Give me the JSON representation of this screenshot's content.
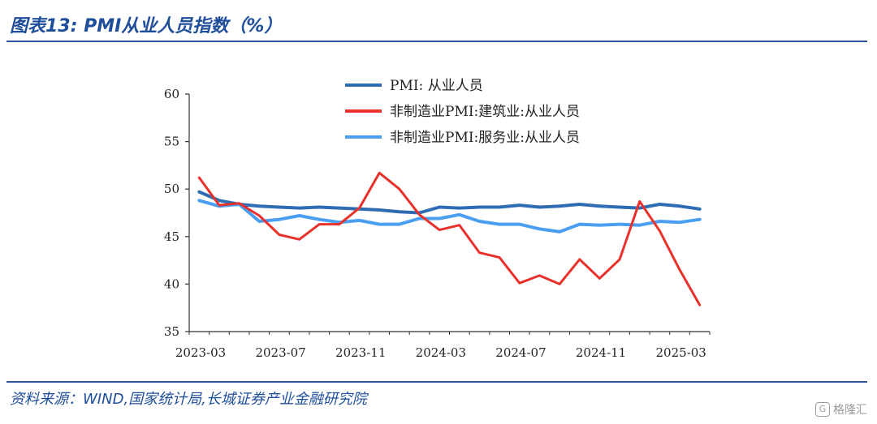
{
  "header": {
    "title": "图表13:  PMI从业人员指数（%）"
  },
  "footer": {
    "source": "资料来源：WIND,国家统计局,长城证券产业金融研究院"
  },
  "watermark": {
    "logo": "G",
    "text": "格隆汇"
  },
  "colors": {
    "title": "#1f4e9a",
    "rule": "#2f5597"
  },
  "chart_data": {
    "type": "line",
    "x": [
      "2023-03",
      "2023-04",
      "2023-05",
      "2023-06",
      "2023-07",
      "2023-08",
      "2023-09",
      "2023-10",
      "2023-11",
      "2023-12",
      "2024-01",
      "2024-02",
      "2024-03",
      "2024-04",
      "2024-05",
      "2024-06",
      "2024-07",
      "2024-08",
      "2024-09",
      "2024-10",
      "2024-11",
      "2024-12",
      "2025-01",
      "2025-02",
      "2025-03",
      "2025-04"
    ],
    "xticks": [
      "2023-03",
      "2023-07",
      "2023-11",
      "2024-03",
      "2024-07",
      "2024-11",
      "2025-03"
    ],
    "yticks": [
      35,
      40,
      45,
      50,
      55,
      60
    ],
    "ylim": [
      35,
      60
    ],
    "legend_position": "top-center",
    "series": [
      {
        "name": "PMI: 从业人员",
        "color": "#2e6db4",
        "width": 4,
        "values": [
          49.7,
          48.8,
          48.4,
          48.2,
          48.1,
          48.0,
          48.1,
          48.0,
          47.9,
          47.8,
          47.6,
          47.5,
          48.1,
          48.0,
          48.1,
          48.1,
          48.3,
          48.1,
          48.2,
          48.4,
          48.2,
          48.1,
          48.0,
          48.4,
          48.2,
          47.9
        ]
      },
      {
        "name": "非制造业PMI:建筑业:从业人员",
        "color": "#e8312b",
        "width": 3,
        "values": [
          51.2,
          48.3,
          48.5,
          47.2,
          45.2,
          44.7,
          46.3,
          46.3,
          48.0,
          51.7,
          50.0,
          47.3,
          45.7,
          46.2,
          43.3,
          42.8,
          40.1,
          40.9,
          40.0,
          42.6,
          40.6,
          42.6,
          48.7,
          45.6,
          41.5,
          37.8
        ]
      },
      {
        "name": "非制造业PMI:服务业:从业人员",
        "color": "#4b9ff2",
        "width": 4,
        "values": [
          48.8,
          48.2,
          48.4,
          46.6,
          46.8,
          47.2,
          46.8,
          46.5,
          46.7,
          46.3,
          46.3,
          46.9,
          46.9,
          47.3,
          46.6,
          46.3,
          46.3,
          45.8,
          45.5,
          46.3,
          46.2,
          46.3,
          46.2,
          46.6,
          46.5,
          46.8
        ]
      }
    ]
  }
}
